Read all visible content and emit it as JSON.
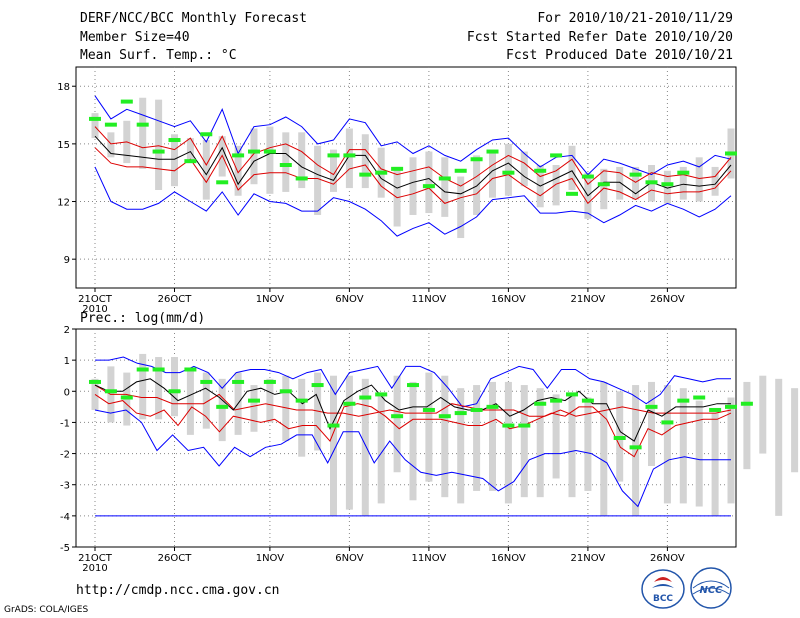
{
  "header": {
    "title": "DERF/NCC/BCC Monthly Forecast",
    "member_size": "Member Size=40",
    "variable": "Mean Surf. Temp.: °C",
    "period": "For 2010/10/21-2010/11/29",
    "started": "Fcst Started Refer Date 2010/10/20",
    "produced": "Fcst Produced Date 2010/10/21"
  },
  "footer": {
    "url": "http://cmdp.ncc.cma.gov.cn",
    "grads": "GrADS: COLA/IGES",
    "logo1_text": "BCC",
    "logo2_text": "NCC"
  },
  "colors": {
    "envelope": "#0000ff",
    "quartile": "#dd0000",
    "mean": "#000000",
    "box": "#d3d3d3",
    "median": "#22ee22",
    "grid": "#888888"
  },
  "chart_data": [
    {
      "type": "line",
      "title": "Mean Surf. Temp.: °C",
      "ylim": [
        7.5,
        19
      ],
      "yticks": [
        9,
        12,
        15,
        18
      ],
      "xtick_labels": [
        "21OCT",
        "26OCT",
        "1NOV",
        "6NOV",
        "11NOV",
        "16NOV",
        "21NOV",
        "26NOV"
      ],
      "xtick_days": [
        0,
        5,
        11,
        16,
        21,
        26,
        31,
        36
      ],
      "year_label": "2010",
      "series": [
        {
          "name": "max",
          "values": [
            17.5,
            16.3,
            16.8,
            16.5,
            16.2,
            15.9,
            16.2,
            15.1,
            16.8,
            14.5,
            15.9,
            16.0,
            16.4,
            15.9,
            15.0,
            15.2,
            16.3,
            16.1,
            14.9,
            15.1,
            14.5,
            14.9,
            14.4,
            14.1,
            14.7,
            15.2,
            15.3,
            14.5,
            13.8,
            14.3,
            14.4,
            13.4,
            14.2,
            14.0,
            13.7,
            13.4,
            13.9,
            14.1,
            13.8,
            14.4,
            14.2
          ]
        },
        {
          "name": "q_upper",
          "values": [
            15.9,
            15.0,
            15.1,
            14.8,
            14.9,
            14.7,
            15.3,
            13.9,
            15.4,
            13.5,
            14.5,
            14.8,
            15.0,
            14.6,
            13.9,
            13.4,
            14.7,
            14.7,
            13.7,
            13.4,
            13.6,
            13.8,
            13.2,
            12.8,
            13.3,
            13.9,
            14.4,
            14.0,
            13.3,
            13.6,
            14.2,
            12.9,
            13.6,
            13.5,
            13.0,
            13.5,
            13.3,
            13.4,
            13.2,
            13.3,
            14.3
          ]
        },
        {
          "name": "mean",
          "values": [
            15.4,
            14.5,
            14.4,
            14.3,
            14.2,
            14.2,
            14.6,
            13.4,
            14.8,
            12.9,
            14.1,
            14.5,
            14.5,
            13.8,
            13.4,
            13.1,
            14.4,
            14.4,
            13.2,
            12.7,
            13.0,
            13.2,
            12.5,
            12.4,
            12.8,
            13.6,
            14.0,
            13.3,
            12.8,
            13.2,
            13.6,
            12.3,
            13.0,
            13.0,
            12.4,
            13.0,
            12.7,
            12.9,
            12.8,
            12.9,
            13.9
          ]
        },
        {
          "name": "q_lower",
          "values": [
            14.8,
            14.0,
            13.8,
            13.8,
            13.7,
            13.6,
            14.2,
            13.0,
            14.4,
            12.6,
            13.4,
            13.5,
            13.5,
            13.2,
            13.2,
            12.9,
            13.7,
            13.9,
            12.8,
            12.2,
            12.4,
            12.7,
            11.9,
            12.2,
            12.4,
            13.2,
            13.4,
            12.8,
            12.3,
            12.9,
            13.2,
            11.9,
            12.7,
            12.5,
            12.1,
            12.6,
            12.4,
            12.5,
            12.5,
            12.7,
            13.6
          ]
        },
        {
          "name": "min",
          "values": [
            13.8,
            12.0,
            11.6,
            11.6,
            11.9,
            12.5,
            12.0,
            11.5,
            12.5,
            11.3,
            12.4,
            12.0,
            11.9,
            11.5,
            11.5,
            12.2,
            12.0,
            11.6,
            11.0,
            10.2,
            10.6,
            10.9,
            10.3,
            10.7,
            11.2,
            12.1,
            12.2,
            12.3,
            11.4,
            11.4,
            11.5,
            11.4,
            10.9,
            11.3,
            11.8,
            11.5,
            11.9,
            11.6,
            11.2,
            11.6,
            12.3
          ]
        },
        {
          "name": "box_top",
          "values": [
            16.6,
            15.6,
            16.2,
            17.4,
            17.3,
            15.5,
            15.3,
            15.2,
            15.4,
            14.9,
            15.8,
            15.9,
            15.6,
            15.6,
            14.9,
            14.7,
            15.8,
            15.5,
            14.8,
            13.8,
            14.3,
            14.6,
            14.3,
            13.3,
            14.4,
            14.5,
            15.0,
            14.6,
            13.9,
            13.9,
            14.9,
            13.5,
            13.7,
            13.8,
            13.8,
            13.9,
            13.6,
            13.8,
            14.3,
            13.8,
            15.8
          ]
        },
        {
          "name": "box_bottom",
          "values": [
            15.3,
            14.3,
            14.0,
            13.7,
            12.6,
            12.8,
            14.1,
            12.1,
            13.3,
            12.3,
            12.9,
            12.4,
            12.5,
            12.7,
            11.3,
            12.5,
            12.7,
            12.7,
            12.2,
            10.7,
            11.3,
            11.4,
            11.2,
            10.1,
            11.3,
            12.2,
            12.3,
            12.8,
            11.7,
            11.8,
            12.6,
            11.1,
            11.6,
            12.1,
            12.1,
            12.0,
            11.9,
            12.1,
            12.0,
            12.3,
            13.2
          ]
        },
        {
          "name": "median",
          "values": [
            16.3,
            16.0,
            17.2,
            16.0,
            14.6,
            15.2,
            14.1,
            15.5,
            13.0,
            14.4,
            14.6,
            14.6,
            13.9,
            13.2,
            14.4,
            14.4,
            13.4,
            13.5,
            13.7,
            12.8,
            13.2,
            13.6,
            14.2,
            14.6,
            13.5,
            13.6,
            14.4,
            12.4,
            13.3,
            12.9,
            13.4,
            13.0,
            12.9,
            13.5,
            14.5
          ]
        }
      ],
      "median_days": [
        0,
        1,
        2,
        3,
        4,
        5,
        6,
        7,
        8,
        9,
        10,
        11,
        12,
        13,
        15,
        16,
        17,
        18,
        19,
        21,
        22,
        23,
        24,
        25,
        26,
        28,
        29,
        30,
        31,
        32,
        34,
        35,
        36,
        37,
        40
      ]
    },
    {
      "type": "line",
      "title": "Prec.: log(mm/d)",
      "ylim": [
        -5,
        2
      ],
      "yticks": [
        -5,
        -4,
        -3,
        -2,
        -1,
        0,
        1,
        2
      ],
      "xtick_labels": [
        "21OCT",
        "26OCT",
        "1NOV",
        "6NOV",
        "11NOV",
        "16NOV",
        "21NOV",
        "26NOV"
      ],
      "xtick_days": [
        0,
        5,
        11,
        16,
        21,
        26,
        31,
        36
      ],
      "year_label": "2010",
      "series": [
        {
          "name": "max",
          "values": [
            1.0,
            1.0,
            1.1,
            0.9,
            0.8,
            0.6,
            0.6,
            0.8,
            0.6,
            0.1,
            0.6,
            0.7,
            0.7,
            0.6,
            0.4,
            0.6,
            0.7,
            -0.1,
            0.6,
            0.7,
            0.8,
            0.1,
            0.8,
            0.8,
            0.6,
            0.1,
            -0.5,
            -0.4,
            0.4,
            0.6,
            0.8,
            0.7,
            0.1,
            0.7,
            0.7,
            0.4,
            0.3,
            0.1,
            -0.1,
            -0.4,
            -0.1,
            0.5,
            0.4,
            0.3,
            0.4,
            0.4
          ]
        },
        {
          "name": "q_upper",
          "values": [
            0.2,
            -0.1,
            -0.1,
            -0.2,
            -0.2,
            -0.4,
            -0.4,
            -0.4,
            -0.1,
            -0.6,
            -0.5,
            -0.4,
            -0.5,
            -0.6,
            -0.6,
            -0.7,
            -0.7,
            -0.8,
            -0.7,
            -0.6,
            -0.7,
            -0.7,
            -0.7,
            -0.4,
            -0.5,
            -0.6,
            -0.6,
            -0.6,
            -0.8,
            -0.8,
            -0.6,
            -0.8,
            -0.7,
            -0.6,
            -0.5,
            -0.6,
            -0.7,
            -0.7,
            -0.7,
            -0.7,
            -0.7,
            -0.6
          ]
        },
        {
          "name": "mean",
          "values": [
            0.2,
            0.0,
            0.0,
            0.3,
            0.4,
            0.1,
            -0.3,
            -0.1,
            0.1,
            -0.2,
            -0.6,
            0.0,
            0.1,
            -0.1,
            0.0,
            -0.4,
            -0.1,
            -1.2,
            -0.3,
            0.0,
            0.2,
            -0.3,
            -0.6,
            -0.5,
            -0.5,
            -0.2,
            -0.5,
            -0.6,
            -0.6,
            -0.4,
            -0.8,
            -0.6,
            -0.3,
            -0.2,
            -0.3,
            0.0,
            -0.4,
            -0.4,
            -1.3,
            -1.6,
            -0.6,
            -0.8,
            -0.5,
            -0.5,
            -0.5,
            -0.4,
            -0.4
          ]
        },
        {
          "name": "q_lower",
          "values": [
            -0.1,
            -0.4,
            -0.3,
            -0.7,
            -0.8,
            -0.6,
            -1.1,
            -0.5,
            -0.8,
            -1.3,
            -0.8,
            -0.9,
            -1.0,
            -0.9,
            -1.2,
            -1.1,
            -1.1,
            -1.6,
            -0.5,
            -0.4,
            -0.5,
            -0.8,
            -1.2,
            -0.9,
            -0.9,
            -0.9,
            -1.0,
            -1.1,
            -1.1,
            -0.9,
            -1.2,
            -1.1,
            -0.9,
            -0.7,
            -0.8,
            -0.5,
            -0.5,
            -0.9,
            -1.8,
            -2.1,
            -1.2,
            -1.4,
            -1.1,
            -1.0,
            -0.9,
            -0.9,
            -0.7
          ]
        },
        {
          "name": "min",
          "values": [
            -0.6,
            -0.7,
            -0.6,
            -1.0,
            -1.9,
            -1.4,
            -1.9,
            -1.8,
            -2.4,
            -1.8,
            -2.1,
            -1.8,
            -1.7,
            -1.4,
            -1.4,
            -2.3,
            -1.3,
            -1.3,
            -2.3,
            -1.6,
            -2.2,
            -2.6,
            -2.7,
            -2.6,
            -2.7,
            -2.8,
            -3.2,
            -2.9,
            -2.2,
            -2.0,
            -2.0,
            -1.9,
            -2.0,
            -2.3,
            -3.2,
            -3.7,
            -2.5,
            -2.2,
            -2.1,
            -2.2,
            -2.2,
            -2.2
          ]
        },
        {
          "name": "box_top",
          "values": [
            0.4,
            0.8,
            0.6,
            1.2,
            1.1,
            1.1,
            0.7,
            0.6,
            0.4,
            0.6,
            0.2,
            0.4,
            0.5,
            0.4,
            0.6,
            0.5,
            0.5,
            0.4,
            -0.1,
            0.5,
            0.3,
            0.6,
            0.5,
            0.1,
            0.2,
            0.3,
            0.3,
            0.2,
            0.1,
            -0.1,
            -0.1,
            -0.2,
            0.3,
            0.0,
            0.2,
            0.3,
            0.2,
            0.1,
            -0.3,
            -0.7,
            -0.2,
            0.3,
            0.5,
            0.4,
            0.1,
            0.2,
            0.2
          ]
        },
        {
          "name": "box_bottom",
          "values": [
            -0.6,
            -1.0,
            -1.1,
            -0.9,
            -0.9,
            -0.8,
            -1.4,
            -1.2,
            -1.6,
            -1.4,
            -1.3,
            -1.0,
            -1.6,
            -2.1,
            -1.9,
            -4.0,
            -3.8,
            -4.0,
            -3.6,
            -2.6,
            -3.5,
            -2.9,
            -3.4,
            -3.6,
            -3.2,
            -3.2,
            -3.6,
            -3.4,
            -3.4,
            -2.8,
            -3.4,
            -3.2,
            -4.0,
            -2.9,
            -4.0,
            -2.4,
            -3.6,
            -3.6,
            -3.7,
            -4.0,
            -3.6,
            -2.5,
            -2.0,
            -4.0,
            -2.6,
            -3.7,
            -4.0
          ]
        },
        {
          "name": "median",
          "values": [
            0.3,
            0.0,
            -0.2,
            0.7,
            0.7,
            0.0,
            0.7,
            0.3,
            -0.5,
            0.3,
            -0.3,
            0.3,
            0.0,
            -0.3,
            0.2,
            -1.1,
            -0.4,
            -0.2,
            -0.1,
            -0.8,
            0.2,
            -0.6,
            -0.8,
            -0.7,
            -0.6,
            -0.5,
            -1.1,
            -1.1,
            -0.4,
            -0.3,
            -0.1,
            -0.3,
            -1.5,
            -1.8,
            -0.5,
            -1.0,
            -0.3,
            -0.2,
            -0.6,
            -0.5,
            -0.4
          ]
        },
        {
          "name": "lower_bound",
          "values": [
            -4.0,
            -4.0
          ]
        }
      ],
      "median_days": [
        0,
        1,
        2,
        3,
        4,
        5,
        6,
        7,
        8,
        9,
        10,
        11,
        12,
        13,
        14,
        15,
        16,
        17,
        18,
        19,
        20,
        21,
        22,
        23,
        24,
        25,
        26,
        27,
        28,
        29,
        30,
        31,
        33,
        34,
        35,
        36,
        37,
        38,
        39,
        40,
        41
      ]
    }
  ]
}
